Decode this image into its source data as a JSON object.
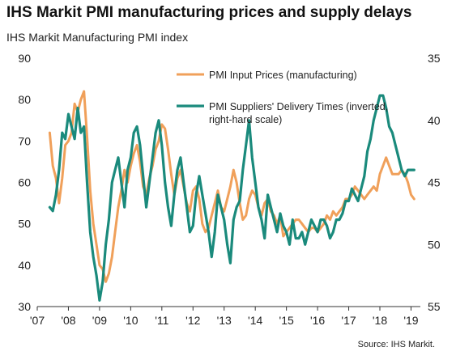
{
  "header": {
    "title": "IHS Markit PMI manufacturing prices and supply delays",
    "subtitle": "IHS Markit Manufacturing PMI index",
    "source": "Source: IHS Markit."
  },
  "colors": {
    "input_prices": "#f0a05a",
    "delivery_times": "#1a8a7c",
    "axis": "#333333"
  },
  "chart_data": {
    "type": "line",
    "title": "IHS Markit PMI manufacturing prices and supply delays",
    "ylabel": "IHS Markit Manufacturing PMI index",
    "xlabel": "",
    "xlim": [
      2007.0,
      2019.3
    ],
    "x_ticks": [
      {
        "value": 2007,
        "label": "'07"
      },
      {
        "value": 2008,
        "label": "'08"
      },
      {
        "value": 2009,
        "label": "'09"
      },
      {
        "value": 2010,
        "label": "'10"
      },
      {
        "value": 2011,
        "label": "'11"
      },
      {
        "value": 2012,
        "label": "'12"
      },
      {
        "value": 2013,
        "label": "'13"
      },
      {
        "value": 2014,
        "label": "'14"
      },
      {
        "value": 2015,
        "label": "'15"
      },
      {
        "value": 2016,
        "label": "'16"
      },
      {
        "value": 2017,
        "label": "'17"
      },
      {
        "value": 2018,
        "label": "'18"
      },
      {
        "value": 2019,
        "label": "'19"
      }
    ],
    "y_left": {
      "lim": [
        30,
        90
      ],
      "ticks": [
        "90",
        "80",
        "70",
        "60",
        "50",
        "40",
        "30"
      ]
    },
    "y_right": {
      "lim": [
        55,
        35
      ],
      "inverted": true,
      "ticks": [
        "35",
        "40",
        "45",
        "50",
        "55"
      ]
    },
    "grid": false,
    "legend_placement": "top-right",
    "series": [
      {
        "name": "PMI Input Prices (manufacturing)",
        "axis": "left",
        "x": [
          2007.4,
          2007.5,
          2007.6,
          2007.7,
          2007.8,
          2007.9,
          2008.0,
          2008.1,
          2008.2,
          2008.3,
          2008.4,
          2008.5,
          2008.6,
          2008.7,
          2008.8,
          2008.9,
          2009.0,
          2009.1,
          2009.2,
          2009.3,
          2009.4,
          2009.5,
          2009.6,
          2009.7,
          2009.8,
          2009.9,
          2010.0,
          2010.1,
          2010.2,
          2010.3,
          2010.4,
          2010.5,
          2010.6,
          2010.7,
          2010.8,
          2010.9,
          2011.0,
          2011.1,
          2011.2,
          2011.3,
          2011.4,
          2011.5,
          2011.6,
          2011.7,
          2011.8,
          2011.9,
          2012.0,
          2012.1,
          2012.2,
          2012.3,
          2012.4,
          2012.5,
          2012.6,
          2012.7,
          2012.8,
          2012.9,
          2013.0,
          2013.1,
          2013.2,
          2013.3,
          2013.4,
          2013.5,
          2013.6,
          2013.7,
          2013.8,
          2013.9,
          2014.0,
          2014.1,
          2014.2,
          2014.3,
          2014.4,
          2014.5,
          2014.6,
          2014.7,
          2014.8,
          2014.9,
          2015.0,
          2015.1,
          2015.2,
          2015.3,
          2015.4,
          2015.5,
          2015.6,
          2015.7,
          2015.8,
          2015.9,
          2016.0,
          2016.1,
          2016.2,
          2016.3,
          2016.4,
          2016.5,
          2016.6,
          2016.7,
          2016.8,
          2016.9,
          2017.0,
          2017.1,
          2017.2,
          2017.3,
          2017.4,
          2017.5,
          2017.6,
          2017.7,
          2017.8,
          2017.9,
          2018.0,
          2018.1,
          2018.2,
          2018.3,
          2018.4,
          2018.5,
          2018.6,
          2018.7,
          2018.8,
          2018.9,
          2019.0,
          2019.1
        ],
        "values": [
          72,
          64,
          61,
          55,
          61,
          69,
          70,
          72,
          79,
          77,
          80,
          82,
          71,
          58,
          50,
          45,
          40,
          39,
          36,
          38,
          42,
          48,
          54,
          58,
          63,
          60,
          64,
          67,
          69,
          65,
          59,
          57,
          61,
          64,
          68,
          70,
          74,
          73,
          68,
          62,
          57,
          61,
          63,
          59,
          55,
          53,
          58,
          59,
          56,
          50,
          48,
          49,
          52,
          55,
          58,
          54,
          53,
          56,
          59,
          63,
          60,
          55,
          51,
          52,
          56,
          58,
          57,
          54,
          52,
          55,
          56,
          53,
          52,
          50,
          52,
          47,
          48,
          49,
          50,
          51,
          51,
          50,
          49,
          48,
          49,
          49,
          48,
          49,
          50,
          52,
          51,
          53,
          52,
          53,
          54,
          56,
          56,
          57,
          59,
          58,
          57,
          56,
          57,
          58,
          59,
          58,
          62,
          64,
          66,
          64,
          62,
          62,
          62,
          63,
          62,
          60,
          57,
          56
        ]
      },
      {
        "name": "PMI Suppliers' Delivery Times (inverted, right-hard scale)",
        "axis": "right",
        "x": [
          2007.4,
          2007.5,
          2007.6,
          2007.7,
          2007.8,
          2007.9,
          2008.0,
          2008.1,
          2008.2,
          2008.3,
          2008.4,
          2008.5,
          2008.6,
          2008.7,
          2008.8,
          2008.9,
          2009.0,
          2009.1,
          2009.2,
          2009.3,
          2009.4,
          2009.5,
          2009.6,
          2009.7,
          2009.8,
          2009.9,
          2010.0,
          2010.1,
          2010.2,
          2010.3,
          2010.4,
          2010.5,
          2010.6,
          2010.7,
          2010.8,
          2010.9,
          2011.0,
          2011.1,
          2011.2,
          2011.3,
          2011.4,
          2011.5,
          2011.6,
          2011.7,
          2011.8,
          2011.9,
          2012.0,
          2012.1,
          2012.2,
          2012.3,
          2012.4,
          2012.5,
          2012.6,
          2012.7,
          2012.8,
          2012.9,
          2013.0,
          2013.1,
          2013.2,
          2013.3,
          2013.4,
          2013.5,
          2013.6,
          2013.7,
          2013.8,
          2013.9,
          2014.0,
          2014.1,
          2014.2,
          2014.3,
          2014.4,
          2014.5,
          2014.6,
          2014.7,
          2014.8,
          2014.9,
          2015.0,
          2015.1,
          2015.2,
          2015.3,
          2015.4,
          2015.5,
          2015.6,
          2015.7,
          2015.8,
          2015.9,
          2016.0,
          2016.1,
          2016.2,
          2016.3,
          2016.4,
          2016.5,
          2016.6,
          2016.7,
          2016.8,
          2016.9,
          2017.0,
          2017.1,
          2017.2,
          2017.3,
          2017.4,
          2017.5,
          2017.6,
          2017.7,
          2017.8,
          2017.9,
          2018.0,
          2018.1,
          2018.2,
          2018.3,
          2018.4,
          2018.5,
          2018.6,
          2018.7,
          2018.8,
          2018.9,
          2019.0,
          2019.1
        ],
        "values": [
          47.0,
          47.3,
          46.0,
          44.0,
          41.0,
          41.5,
          39.5,
          40.5,
          41.5,
          39.0,
          41.0,
          40.5,
          45.0,
          49.0,
          51.0,
          52.5,
          54.5,
          53.0,
          50.0,
          48.0,
          45.0,
          44.0,
          43.0,
          45.0,
          47.0,
          44.0,
          43.0,
          41.0,
          40.5,
          42.0,
          44.5,
          47.0,
          45.0,
          43.0,
          41.0,
          40.0,
          42.0,
          45.0,
          47.0,
          48.5,
          46.0,
          44.0,
          43.0,
          45.0,
          47.0,
          49.0,
          48.5,
          46.0,
          44.5,
          46.0,
          47.5,
          49.0,
          51.0,
          49.0,
          46.0,
          47.0,
          48.0,
          50.0,
          51.5,
          48.0,
          47.0,
          46.5,
          44.0,
          42.0,
          40.0,
          43.0,
          45.0,
          47.0,
          48.0,
          49.5,
          46.0,
          47.0,
          48.0,
          49.0,
          47.5,
          48.5,
          49.0,
          50.0,
          48.0,
          49.5,
          49.5,
          49.0,
          50.0,
          49.0,
          48.0,
          48.5,
          49.0,
          48.0,
          48.0,
          48.5,
          49.5,
          49.0,
          48.0,
          48.0,
          47.5,
          46.5,
          46.5,
          45.5,
          46.0,
          46.5,
          45.5,
          44.5,
          42.5,
          41.5,
          40.0,
          39.0,
          38.0,
          38.0,
          39.0,
          40.5,
          41.0,
          42.0,
          43.0,
          44.0,
          44.5,
          44.0,
          44.0,
          44.0
        ]
      }
    ]
  }
}
